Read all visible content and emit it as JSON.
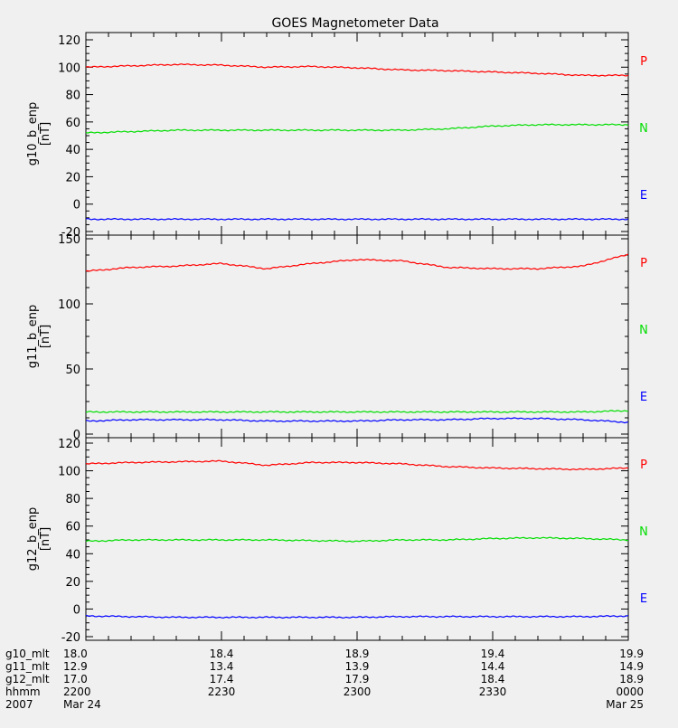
{
  "title": "GOES Magnetometer Data",
  "colors": {
    "P": "#ff0000",
    "N": "#00dd00",
    "E": "#0000ff",
    "axis": "#000000",
    "background": "#f0f0f0"
  },
  "chart_data": [
    {
      "type": "line",
      "ylabel": "g10_b_enp",
      "yunit": "[nT]",
      "ylim": [
        -20,
        120
      ],
      "yticks": [
        -20,
        0,
        20,
        40,
        60,
        80,
        100,
        120
      ],
      "x": [
        "2200",
        "2210",
        "2220",
        "2230",
        "2240",
        "2250",
        "2300",
        "2310",
        "2320",
        "2330",
        "2340",
        "2350",
        "0000"
      ],
      "series": [
        {
          "name": "P",
          "values": [
            100,
            101,
            102,
            101.5,
            100,
            100.5,
            99.5,
            98,
            97.5,
            96.5,
            95.5,
            94,
            94
          ]
        },
        {
          "name": "N",
          "values": [
            52,
            53,
            54,
            54,
            54,
            54,
            54,
            54,
            55,
            57,
            58,
            58,
            58
          ]
        },
        {
          "name": "E",
          "values": [
            -11,
            -11,
            -11,
            -11,
            -11,
            -11,
            -11,
            -11,
            -11,
            -11,
            -11,
            -11,
            -11
          ]
        }
      ],
      "legend": [
        "P",
        "N",
        "E"
      ]
    },
    {
      "type": "line",
      "ylabel": "g11_b_enp",
      "yunit": "[nT]",
      "ylim": [
        0,
        150
      ],
      "yticks": [
        0,
        50,
        100,
        150
      ],
      "x": [
        "2200",
        "2210",
        "2220",
        "2230",
        "2240",
        "2250",
        "2300",
        "2310",
        "2320",
        "2330",
        "2340",
        "2350",
        "0000"
      ],
      "series": [
        {
          "name": "P",
          "values": [
            125,
            128,
            129,
            131,
            127,
            131,
            134,
            133,
            128,
            127,
            127,
            129,
            138
          ]
        },
        {
          "name": "N",
          "values": [
            17,
            17,
            17,
            17,
            17,
            17,
            17,
            17,
            17,
            17,
            17,
            17,
            18
          ]
        },
        {
          "name": "E",
          "values": [
            10,
            11,
            11,
            11,
            10,
            10,
            10,
            11,
            11,
            12,
            12,
            11,
            9
          ]
        }
      ],
      "legend": [
        "P",
        "N",
        "E"
      ]
    },
    {
      "type": "line",
      "ylabel": "g12_b_enp",
      "yunit": "[nT]",
      "ylim": [
        -20,
        120
      ],
      "yticks": [
        -20,
        0,
        20,
        40,
        60,
        80,
        100,
        120
      ],
      "x": [
        "2200",
        "2210",
        "2220",
        "2230",
        "2240",
        "2250",
        "2300",
        "2310",
        "2320",
        "2330",
        "2340",
        "2350",
        "0000"
      ],
      "series": [
        {
          "name": "P",
          "values": [
            105,
            106,
            106.5,
            107,
            104,
            106,
            106,
            105,
            103,
            102,
            101.5,
            101,
            102
          ]
        },
        {
          "name": "N",
          "values": [
            49,
            50,
            50,
            50,
            50,
            49.5,
            49,
            50,
            50,
            51,
            51.5,
            51,
            50
          ]
        },
        {
          "name": "E",
          "values": [
            -5,
            -5.5,
            -6,
            -6,
            -6,
            -6,
            -6,
            -5.5,
            -5.5,
            -5.5,
            -5.5,
            -5.5,
            -5
          ]
        }
      ],
      "legend": [
        "P",
        "N",
        "E"
      ]
    }
  ],
  "footer": {
    "rows": [
      {
        "label": "g10_mlt",
        "values": [
          "18.0",
          "18.4",
          "18.9",
          "19.4",
          "19.9"
        ]
      },
      {
        "label": "g11_mlt",
        "values": [
          "12.9",
          "13.4",
          "13.9",
          "14.4",
          "14.9"
        ]
      },
      {
        "label": "g12_mlt",
        "values": [
          "17.0",
          "17.4",
          "17.9",
          "18.4",
          "18.9"
        ]
      },
      {
        "label": "hhmm",
        "values": [
          "2200",
          "2230",
          "2300",
          "2330",
          "0000"
        ]
      },
      {
        "label": "2007",
        "values": [
          "Mar 24",
          "",
          "",
          "",
          "Mar 25"
        ]
      }
    ]
  }
}
